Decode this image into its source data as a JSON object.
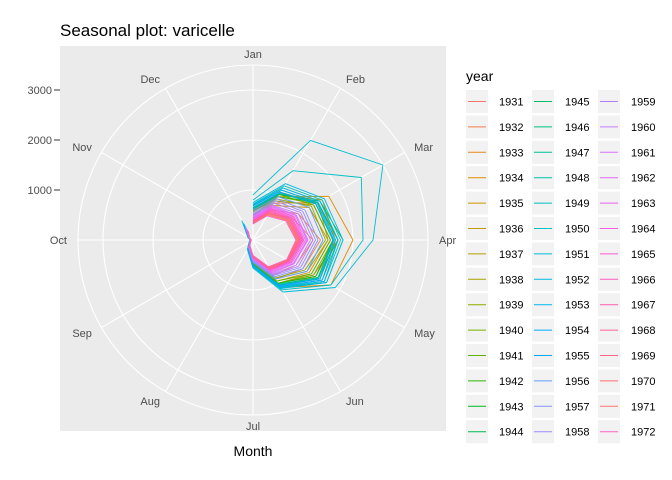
{
  "chart_data": {
    "type": "line",
    "coord": "polar",
    "title": "Seasonal plot: varicelle",
    "xlabel": "Month",
    "ylabel": "",
    "x": [
      "Jan",
      "Feb",
      "Mar",
      "Apr",
      "May",
      "Jun",
      "Jul",
      "Aug",
      "Sep",
      "Oct",
      "Nov",
      "Dec"
    ],
    "ylim": [
      0,
      3500
    ],
    "y_ticks": [
      1000,
      2000,
      3000
    ],
    "y_tick_labels": [
      "1000",
      "2000",
      "3000"
    ],
    "grid": true,
    "legend": {
      "title": "year",
      "position": "right"
    },
    "series": [
      {
        "name": "1931",
        "color": "#F8766D",
        "values": [
          330,
          600,
          900,
          1200,
          1000,
          820,
          400,
          150,
          60,
          40,
          80,
          180
        ]
      },
      {
        "name": "1932",
        "color": "#F17E47",
        "values": [
          380,
          700,
          1050,
          1350,
          1150,
          900,
          450,
          170,
          70,
          45,
          95,
          210
        ]
      },
      {
        "name": "1933",
        "color": "#E7851E",
        "values": [
          450,
          850,
          1500,
          1700,
          1400,
          1000,
          500,
          200,
          80,
          50,
          110,
          250
        ]
      },
      {
        "name": "1934",
        "color": "#DC8D00",
        "values": [
          500,
          1000,
          1750,
          2000,
          1800,
          1100,
          550,
          220,
          90,
          55,
          120,
          280
        ]
      },
      {
        "name": "1935",
        "color": "#CF9400",
        "values": [
          420,
          800,
          1300,
          1500,
          1300,
          950,
          470,
          190,
          75,
          48,
          100,
          240
        ]
      },
      {
        "name": "1936",
        "color": "#C19A00",
        "values": [
          550,
          1050,
          1600,
          1650,
          1450,
          1050,
          520,
          210,
          85,
          52,
          115,
          300
        ]
      },
      {
        "name": "1937",
        "color": "#B3A000",
        "values": [
          480,
          900,
          1400,
          1550,
          1350,
          1000,
          480,
          195,
          80,
          50,
          105,
          260
        ]
      },
      {
        "name": "1938",
        "color": "#A3A500",
        "values": [
          600,
          1100,
          1500,
          1500,
          1250,
          900,
          450,
          180,
          75,
          47,
          100,
          320
        ]
      },
      {
        "name": "1939",
        "color": "#90AA00",
        "values": [
          520,
          950,
          1350,
          1450,
          1200,
          880,
          440,
          175,
          72,
          46,
          98,
          290
        ]
      },
      {
        "name": "1940",
        "color": "#7CAE00",
        "values": [
          580,
          1000,
          1450,
          1600,
          1400,
          1000,
          500,
          200,
          80,
          50,
          110,
          310
        ]
      },
      {
        "name": "1941",
        "color": "#5DB200",
        "values": [
          620,
          1050,
          1400,
          1550,
          1350,
          950,
          470,
          190,
          78,
          49,
          105,
          330
        ]
      },
      {
        "name": "1942",
        "color": "#2EB600",
        "values": [
          560,
          1000,
          1500,
          1700,
          1500,
          1050,
          520,
          205,
          82,
          51,
          112,
          300
        ]
      },
      {
        "name": "1943",
        "color": "#00B81F",
        "values": [
          650,
          1100,
          1450,
          1600,
          1450,
          1000,
          490,
          195,
          80,
          50,
          108,
          340
        ]
      },
      {
        "name": "1944",
        "color": "#00BB4E",
        "values": [
          600,
          1050,
          1550,
          1800,
          1700,
          1100,
          540,
          215,
          86,
          53,
          118,
          320
        ]
      },
      {
        "name": "1945",
        "color": "#00BD6A",
        "values": [
          680,
          1150,
          1500,
          1650,
          1550,
          1050,
          510,
          200,
          82,
          51,
          112,
          350
        ]
      },
      {
        "name": "1946",
        "color": "#00BE81",
        "values": [
          620,
          1080,
          1450,
          1600,
          1500,
          1020,
          500,
          198,
          81,
          50,
          110,
          330
        ]
      },
      {
        "name": "1947",
        "color": "#00C094",
        "values": [
          700,
          1200,
          1550,
          1700,
          1600,
          1080,
          520,
          205,
          83,
          52,
          114,
          360
        ]
      },
      {
        "name": "1948",
        "color": "#00C0A7",
        "values": [
          640,
          1100,
          1480,
          1620,
          1520,
          1040,
          505,
          200,
          82,
          51,
          111,
          340
        ]
      },
      {
        "name": "1949",
        "color": "#00C0B8",
        "values": [
          720,
          1250,
          1600,
          1750,
          1650,
          1100,
          530,
          210,
          85,
          53,
          116,
          370
        ]
      },
      {
        "name": "1950",
        "color": "#00BFC4",
        "values": [
          800,
          1600,
          2500,
          2200,
          1800,
          1150,
          550,
          215,
          86,
          54,
          118,
          400
        ]
      },
      {
        "name": "1951",
        "color": "#00BDD4",
        "values": [
          900,
          2300,
          3000,
          2400,
          1900,
          1200,
          560,
          220,
          88,
          55,
          120,
          450
        ]
      },
      {
        "name": "1952",
        "color": "#00B9E3",
        "values": [
          750,
          1300,
          1650,
          1800,
          1700,
          1120,
          535,
          212,
          85,
          53,
          116,
          380
        ]
      },
      {
        "name": "1953",
        "color": "#00B4EF",
        "values": [
          700,
          1200,
          1550,
          1700,
          1650,
          1090,
          525,
          208,
          84,
          52,
          115,
          360
        ]
      },
      {
        "name": "1954",
        "color": "#00ADFA",
        "values": [
          680,
          1150,
          1500,
          1650,
          1600,
          1070,
          515,
          205,
          83,
          52,
          113,
          350
        ]
      },
      {
        "name": "1955",
        "color": "#00A5FF",
        "values": [
          650,
          1100,
          1450,
          1600,
          1550,
          1050,
          505,
          200,
          82,
          51,
          111,
          340
        ]
      },
      {
        "name": "1956",
        "color": "#619CFF",
        "values": [
          600,
          1000,
          1300,
          1400,
          1250,
          900,
          450,
          180,
          74,
          47,
          100,
          320
        ]
      },
      {
        "name": "1957",
        "color": "#8494FF",
        "values": [
          560,
          950,
          1200,
          1300,
          1150,
          850,
          430,
          170,
          70,
          45,
          95,
          300
        ]
      },
      {
        "name": "1958",
        "color": "#9D8AFF",
        "values": [
          520,
          900,
          1150,
          1250,
          1100,
          820,
          410,
          165,
          68,
          44,
          92,
          280
        ]
      },
      {
        "name": "1959",
        "color": "#B17EFE",
        "values": [
          500,
          850,
          1100,
          1200,
          1050,
          800,
          400,
          160,
          66,
          43,
          90,
          270
        ]
      },
      {
        "name": "1960",
        "color": "#C77CFF",
        "values": [
          480,
          800,
          1050,
          1150,
          1000,
          780,
          390,
          155,
          64,
          42,
          88,
          260
        ]
      },
      {
        "name": "1961",
        "color": "#D774FD",
        "values": [
          460,
          780,
          1000,
          1100,
          950,
          760,
          380,
          150,
          62,
          41,
          86,
          250
        ]
      },
      {
        "name": "1962",
        "color": "#E56BF6",
        "values": [
          440,
          760,
          980,
          1080,
          930,
          740,
          370,
          148,
          60,
          40,
          84,
          240
        ]
      },
      {
        "name": "1963",
        "color": "#F063EB",
        "values": [
          420,
          740,
          950,
          1050,
          900,
          720,
          360,
          145,
          58,
          39,
          82,
          230
        ]
      },
      {
        "name": "1964",
        "color": "#F75EDD",
        "values": [
          400,
          720,
          930,
          1020,
          880,
          700,
          350,
          142,
          57,
          38,
          80,
          220
        ]
      },
      {
        "name": "1965",
        "color": "#FD5BCE",
        "values": [
          390,
          700,
          900,
          1000,
          860,
          690,
          345,
          140,
          56,
          38,
          79,
          215
        ]
      },
      {
        "name": "1966",
        "color": "#FF5ABD",
        "values": [
          380,
          680,
          880,
          980,
          840,
          680,
          340,
          138,
          55,
          37,
          78,
          210
        ]
      },
      {
        "name": "1967",
        "color": "#FF5BAA",
        "values": [
          370,
          660,
          860,
          960,
          830,
          670,
          335,
          136,
          54,
          37,
          77,
          205
        ]
      },
      {
        "name": "1968",
        "color": "#FF6097",
        "values": [
          360,
          640,
          840,
          940,
          820,
          660,
          330,
          134,
          53,
          36,
          76,
          200
        ]
      },
      {
        "name": "1969",
        "color": "#FF6483",
        "values": [
          350,
          620,
          820,
          920,
          810,
          650,
          325,
          132,
          52,
          36,
          75,
          195
        ]
      },
      {
        "name": "1970",
        "color": "#FC6B6F",
        "values": [
          340,
          600,
          800,
          900,
          800,
          640,
          320,
          130,
          51,
          35,
          74,
          190
        ]
      },
      {
        "name": "1971",
        "color": "#F8766D",
        "values": [
          330,
          580,
          780,
          880,
          790,
          630,
          315,
          128,
          50,
          35,
          73,
          185
        ]
      },
      {
        "name": "1972",
        "color": "#FF61C3",
        "values": [
          320,
          560,
          760,
          860,
          780,
          620,
          310,
          126,
          49,
          34,
          72,
          180
        ]
      }
    ]
  }
}
